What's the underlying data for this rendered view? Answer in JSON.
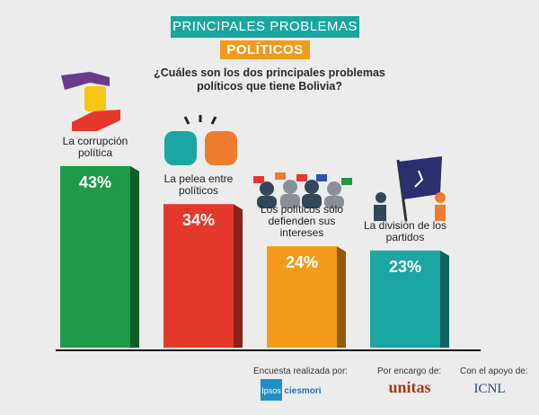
{
  "chart_data": {
    "type": "bar",
    "title": "PRINCIPALES PROBLEMAS",
    "subtitle": "POLÍTICOS",
    "question": "¿Cuáles son los dos principales problemas políticos que tiene Bolivia?",
    "categories": [
      "La corrupción política",
      "La pelea entre políticos",
      "Los políticos sólo defienden sus intereses",
      "La división de los partidos"
    ],
    "values": [
      43,
      34,
      24,
      23
    ],
    "value_labels": [
      "43%",
      "34%",
      "24%",
      "23%"
    ],
    "colors": [
      "#1e9a48",
      "#e5382c",
      "#f39a1b",
      "#1ba6a3"
    ],
    "footer": {
      "survey_by": "Encuesta realizada por:",
      "survey_logos": [
        "Ipsos",
        "ciesmori"
      ],
      "commissioned_by": "Por encargo de:",
      "commissioned_logo": "unitas",
      "supported_by": "Con el apoyo de:",
      "supported_logo": "ICNL"
    }
  }
}
